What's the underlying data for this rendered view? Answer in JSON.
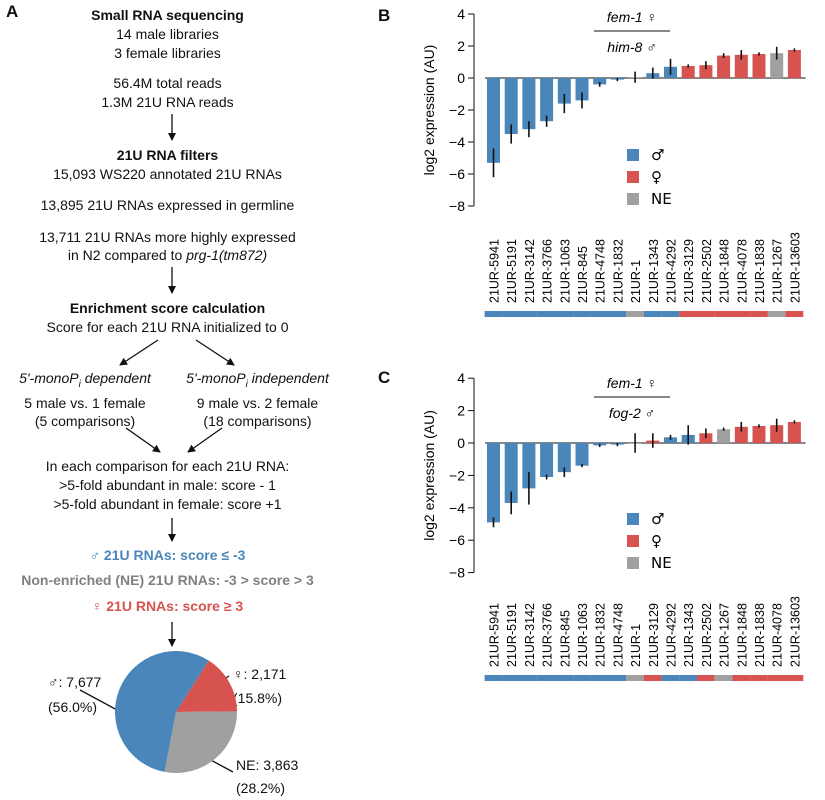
{
  "panels": {
    "a": "A",
    "b": "B",
    "c": "C"
  },
  "flow": {
    "header": "Small RNA sequencing",
    "male_libs": "14 male libraries",
    "female_libs": "3 female libraries",
    "total_reads": "56.4M total reads",
    "rna_reads": "1.3M 21U RNA reads",
    "filters_title": "21U RNA filters",
    "annotated": "15,093 WS220 annotated 21U RNAs",
    "germline": "13,895 21U RNAs expressed in germline",
    "higher_1": "13,711 21U RNAs more highly expressed",
    "higher_2_pre": "in N2 compared to ",
    "higher_2_ital": "prg-1(tm872)",
    "enrich_title": "Enrichment score calculation",
    "init": "Score for each 21U RNA initialized to 0",
    "dep_title": "5'-monoP",
    "dep_sub": "i",
    "dep_rest": " dependent",
    "dep_line2": "5 male vs. 1 female",
    "dep_line3": "(5 comparisons)",
    "ind_title": "5'-monoP",
    "ind_sub": "i",
    "ind_rest": " independent",
    "ind_line2": "9 male vs. 2 female",
    "ind_line3": "(18 comparisons)",
    "each_comp": "In each comparison for each 21U RNA:",
    "male_rule": ">5-fold abundant in male: score - 1",
    "female_rule": ">5-fold abundant in female: score +1",
    "male_class": "♂ 21U RNAs: score ≤ -3",
    "ne_class": "Non-enriched (NE) 21U RNAs: -3 > score > 3",
    "female_class": "♀ 21U RNAs: score ≥ 3"
  },
  "pie": {
    "male_label": "♂: 7,677",
    "male_pct": "(56.0%)",
    "female_label": "♀: 2,171",
    "female_pct": "(15.8%)",
    "ne_label": "NE: 3,863",
    "ne_pct": "(28.2%)"
  },
  "colors": {
    "male": "#4a86ba",
    "female": "#d6534f",
    "ne": "#a0a0a0"
  },
  "chart_data": [
    {
      "type": "pie",
      "categories": [
        "♂",
        "♀",
        "NE"
      ],
      "values": [
        7677,
        2171,
        3863
      ]
    },
    {
      "type": "bar",
      "title_top": "fem-1 ♀",
      "title_bottom": "him-8 ♂",
      "ylabel": "log2 expression (AU)",
      "ylim": [
        -8,
        4
      ],
      "yticks": [
        -8,
        -6,
        -4,
        -2,
        0,
        2,
        4
      ],
      "legend": [
        "♂",
        "♀",
        "NE"
      ],
      "categories": [
        "21UR-5941",
        "21UR-5191",
        "21UR-3142",
        "21UR-3766",
        "21UR-1063",
        "21UR-845",
        "21UR-4748",
        "21UR-1832",
        "21UR-1",
        "21UR-1343",
        "21UR-4292",
        "21UR-3129",
        "21UR-2502",
        "21UR-1848",
        "21UR-4078",
        "21UR-1838",
        "21UR-1267",
        "21UR-13603"
      ],
      "values": [
        -5.3,
        -3.5,
        -3.2,
        -2.7,
        -1.6,
        -1.4,
        -0.4,
        -0.1,
        0.05,
        0.3,
        0.7,
        0.75,
        0.8,
        1.4,
        1.45,
        1.5,
        1.55,
        1.75
      ],
      "errors": [
        0.9,
        0.6,
        0.5,
        0.35,
        0.6,
        0.5,
        0.15,
        0.1,
        0.35,
        0.35,
        0.5,
        0.1,
        0.25,
        0.15,
        0.3,
        0.1,
        0.4,
        0.1
      ],
      "classes": [
        "male",
        "male",
        "male",
        "male",
        "male",
        "male",
        "male",
        "male",
        "ne",
        "male",
        "male",
        "female",
        "female",
        "female",
        "female",
        "female",
        "ne",
        "female"
      ]
    },
    {
      "type": "bar",
      "title_top": "fem-1 ♀",
      "title_bottom": "fog-2 ♂",
      "ylabel": "log2 expression (AU)",
      "ylim": [
        -8,
        4
      ],
      "yticks": [
        -8,
        -6,
        -4,
        -2,
        0,
        2,
        4
      ],
      "legend": [
        "♂",
        "♀",
        "NE"
      ],
      "categories": [
        "21UR-5941",
        "21UR-5191",
        "21UR-3142",
        "21UR-3766",
        "21UR-845",
        "21UR-1063",
        "21UR-1832",
        "21UR-4748",
        "21UR-1",
        "21UR-3129",
        "21UR-4292",
        "21UR-1343",
        "21UR-2502",
        "21UR-1267",
        "21UR-1848",
        "21UR-1838",
        "21UR-4078",
        "21UR-13603"
      ],
      "values": [
        -4.9,
        -3.7,
        -2.8,
        -2.1,
        -1.8,
        -1.4,
        -0.15,
        -0.1,
        0.0,
        0.15,
        0.35,
        0.5,
        0.6,
        0.85,
        1.0,
        1.05,
        1.1,
        1.3
      ],
      "errors": [
        0.3,
        0.7,
        1.0,
        0.15,
        0.3,
        0.1,
        0.1,
        0.1,
        0.6,
        0.45,
        0.15,
        0.6,
        0.3,
        0.1,
        0.3,
        0.1,
        0.4,
        0.1
      ],
      "classes": [
        "male",
        "male",
        "male",
        "male",
        "male",
        "male",
        "male",
        "male",
        "ne",
        "female",
        "male",
        "male",
        "female",
        "ne",
        "female",
        "female",
        "female",
        "female"
      ]
    }
  ]
}
